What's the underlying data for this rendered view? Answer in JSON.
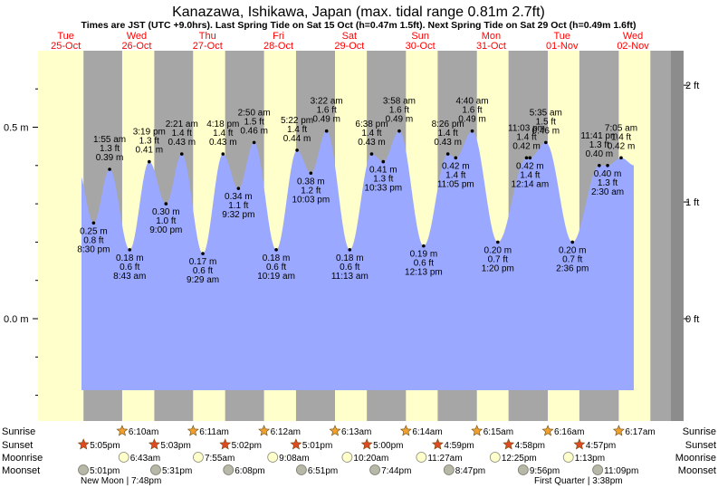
{
  "chart_data": {
    "type": "area",
    "title": "Kanazawa, Ishikawa, Japan (max. tidal range 0.81m 2.7ft)",
    "subtitle": "Times are JST (UTC +9.0hrs). Last Spring Tide on Sat 15 Oct (h=0.47m 1.5ft). Next Spring Tide on Sat 29 Oct (h=0.49m 1.6ft)",
    "days": [
      {
        "dow": "Tue",
        "date": "25-Oct"
      },
      {
        "dow": "Wed",
        "date": "26-Oct"
      },
      {
        "dow": "Thu",
        "date": "27-Oct"
      },
      {
        "dow": "Fri",
        "date": "28-Oct"
      },
      {
        "dow": "Sat",
        "date": "29-Oct"
      },
      {
        "dow": "Sun",
        "date": "30-Oct"
      },
      {
        "dow": "Mon",
        "date": "31-Oct"
      },
      {
        "dow": "Tue",
        "date": "01-Nov"
      },
      {
        "dow": "Wed",
        "date": "02-Nov"
      }
    ],
    "y_left_ticks": [
      {
        "v": 0.5,
        "label": "0.5 m"
      },
      {
        "v": 0.0,
        "label": "0.0 m"
      }
    ],
    "y_right_ticks": [
      {
        "v": 0.6096,
        "label": "2 ft"
      },
      {
        "v": 0.3048,
        "label": "1 ft"
      },
      {
        "v": 0.0,
        "label": "0 ft"
      }
    ],
    "tides": [
      {
        "t": 20.5,
        "h": 0.25,
        "time": "8:30 pm",
        "ft": "0.8 ft",
        "type": "low"
      },
      {
        "t": 25.92,
        "h": 0.39,
        "time": "1:55 am",
        "ft": "1.3 ft",
        "type": "high"
      },
      {
        "t": 32.72,
        "h": 0.18,
        "time": "8:43 am",
        "ft": "0.6 ft",
        "type": "low"
      },
      {
        "t": 39.32,
        "h": 0.41,
        "time": "3:19 pm",
        "ft": "1.3 ft",
        "type": "high"
      },
      {
        "t": 45.0,
        "h": 0.3,
        "time": "9:00 pm",
        "ft": "1.0 ft",
        "type": "low"
      },
      {
        "t": 50.35,
        "h": 0.43,
        "time": "2:21 am",
        "ft": "1.4 ft",
        "type": "high"
      },
      {
        "t": 57.48,
        "h": 0.17,
        "time": "9:29 am",
        "ft": "0.6 ft",
        "type": "low"
      },
      {
        "t": 64.3,
        "h": 0.43,
        "time": "4:18 pm",
        "ft": "1.4 ft",
        "type": "high"
      },
      {
        "t": 69.53,
        "h": 0.34,
        "time": "9:32 pm",
        "ft": "1.1 ft",
        "type": "low"
      },
      {
        "t": 74.83,
        "h": 0.46,
        "time": "2:50 am",
        "ft": "1.5 ft",
        "type": "high"
      },
      {
        "t": 82.32,
        "h": 0.18,
        "time": "10:19 am",
        "ft": "0.6 ft",
        "type": "low"
      },
      {
        "t": 89.37,
        "h": 0.44,
        "time": "5:22 pm",
        "ft": "1.4 ft",
        "type": "high"
      },
      {
        "t": 94.05,
        "h": 0.38,
        "time": "10:03 pm",
        "ft": "1.2 ft",
        "type": "low"
      },
      {
        "t": 99.37,
        "h": 0.49,
        "time": "3:22 am",
        "ft": "1.6 ft",
        "type": "high"
      },
      {
        "t": 107.22,
        "h": 0.18,
        "time": "11:13 am",
        "ft": "0.6 ft",
        "type": "low"
      },
      {
        "t": 114.63,
        "h": 0.43,
        "time": "6:38 pm",
        "ft": "1.4 ft",
        "type": "high"
      },
      {
        "t": 118.55,
        "h": 0.41,
        "time": "10:33 pm",
        "ft": "1.3 ft",
        "type": "low"
      },
      {
        "t": 123.97,
        "h": 0.49,
        "time": "3:58 am",
        "ft": "1.6 ft",
        "type": "high"
      },
      {
        "t": 132.22,
        "h": 0.19,
        "time": "12:13 pm",
        "ft": "0.6 ft",
        "type": "low"
      },
      {
        "t": 140.43,
        "h": 0.43,
        "time": "8:26 pm",
        "ft": "1.4 ft",
        "type": "high"
      },
      {
        "t": 143.08,
        "h": 0.42,
        "time": "11:05 pm",
        "ft": "1.4 ft",
        "type": "low"
      },
      {
        "t": 148.67,
        "h": 0.49,
        "time": "4:40 am",
        "ft": "1.6 ft",
        "type": "high"
      },
      {
        "t": 157.33,
        "h": 0.2,
        "time": "1:20 pm",
        "ft": "0.7 ft",
        "type": "low"
      },
      {
        "t": 167.05,
        "h": 0.42,
        "time": "11:03 pm",
        "ft": "1.4 ft",
        "type": "high"
      },
      {
        "t": 168.23,
        "h": 0.42,
        "time": "12:14 am",
        "ft": "1.4 ft",
        "type": "low"
      },
      {
        "t": 173.58,
        "h": 0.46,
        "time": "5:35 am",
        "ft": "1.5 ft",
        "type": "high"
      },
      {
        "t": 182.6,
        "h": 0.2,
        "time": "2:36 pm",
        "ft": "0.7 ft",
        "type": "low"
      },
      {
        "t": 191.68,
        "h": 0.4,
        "time": "11:41 pm",
        "ft": "1.3 ft",
        "type": "high"
      },
      {
        "t": 194.5,
        "h": 0.4,
        "time": "2:30 am",
        "ft": "1.3 ft",
        "type": "low"
      },
      {
        "t": 199.08,
        "h": 0.42,
        "time": "7:05 am",
        "ft": "1.4 ft",
        "type": "high"
      }
    ],
    "sun": [
      {
        "day": 0,
        "set": "5:05pm",
        "set_t": 17.08
      },
      {
        "day": 1,
        "rise": "6:10am",
        "rise_t": 30.17,
        "set": "5:03pm",
        "set_t": 41.05
      },
      {
        "day": 2,
        "rise": "6:11am",
        "rise_t": 54.18,
        "set": "5:02pm",
        "set_t": 65.03
      },
      {
        "day": 3,
        "rise": "6:12am",
        "rise_t": 78.2,
        "set": "5:01pm",
        "set_t": 89.02
      },
      {
        "day": 4,
        "rise": "6:13am",
        "rise_t": 102.22,
        "set": "5:00pm",
        "set_t": 113.0
      },
      {
        "day": 5,
        "rise": "6:14am",
        "rise_t": 126.23,
        "set": "4:59pm",
        "set_t": 136.98
      },
      {
        "day": 6,
        "rise": "6:15am",
        "rise_t": 150.25,
        "set": "4:58pm",
        "set_t": 160.97
      },
      {
        "day": 7,
        "rise": "6:16am",
        "rise_t": 174.27,
        "set": "4:57pm",
        "set_t": 184.95
      },
      {
        "day": 8,
        "rise": "6:17am",
        "rise_t": 198.28
      }
    ],
    "moonrise": [
      {
        "t": 30.72,
        "label": "6:43am"
      },
      {
        "t": 55.92,
        "label": "7:55am"
      },
      {
        "t": 81.13,
        "label": "9:08am"
      },
      {
        "t": 106.33,
        "label": "10:20am"
      },
      {
        "t": 131.45,
        "label": "11:27am"
      },
      {
        "t": 156.42,
        "label": "12:25pm"
      },
      {
        "t": 181.22,
        "label": "1:13pm"
      }
    ],
    "moonset": [
      {
        "t": 17.02,
        "label": "5:01pm"
      },
      {
        "t": 41.52,
        "label": "5:31pm"
      },
      {
        "t": 66.13,
        "label": "6:08pm"
      },
      {
        "t": 90.85,
        "label": "6:51pm"
      },
      {
        "t": 115.73,
        "label": "7:44pm"
      },
      {
        "t": 140.78,
        "label": "8:47pm"
      },
      {
        "t": 165.93,
        "label": "9:56pm"
      },
      {
        "t": 191.15,
        "label": "11:09pm"
      }
    ],
    "moon_phases": [
      {
        "label": "New Moon | 7:48pm"
      },
      {
        "label": "First Quarter | 3:38pm"
      }
    ],
    "row_labels": [
      "Sunrise",
      "Sunset",
      "Moonrise",
      "Moonset"
    ],
    "colors": {
      "day": "#ffffcc",
      "night": "#a6a6a6",
      "outside": "#ffffff",
      "edge": "#8c8c8c",
      "water": "#9aa8ff",
      "date": "#ff0000",
      "sunrise_star": "#f0a030",
      "sunset_star": "#e04a22",
      "moonrise": "#ffffcc",
      "moonset": "#b8b8a8"
    }
  }
}
